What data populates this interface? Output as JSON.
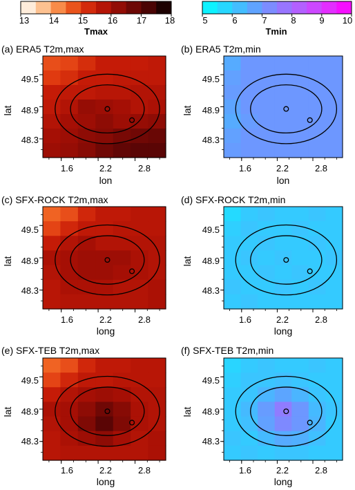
{
  "colorbars": [
    {
      "label": "Tmax",
      "ticks": [
        "13",
        "14",
        "15",
        "16",
        "17",
        "18"
      ],
      "range": [
        13,
        18
      ],
      "colors": [
        "#ffffff",
        "#fdd9b5",
        "#fca96a",
        "#f46d28",
        "#e03a10",
        "#c51b07",
        "#a50f05",
        "#7f0a05",
        "#5a0505",
        "#3a0202",
        "#000000"
      ]
    },
    {
      "label": "Tmin",
      "ticks": [
        "5",
        "6",
        "7",
        "8",
        "9",
        "10"
      ],
      "range": [
        5,
        10
      ],
      "colors": [
        "#00ffff",
        "#2bd3ff",
        "#5aa7ff",
        "#8a80ff",
        "#b85cff",
        "#e033ff",
        "#ff00ff"
      ]
    }
  ],
  "chart_data": [
    {
      "type": "heatmap",
      "title": "(a) ERA5 T2m,max",
      "xlabel": "lon",
      "ylabel": "lat",
      "xticks": [
        "1.6",
        "2.2",
        "2.8"
      ],
      "yticks": [
        "49.5",
        "48.9",
        "48.3"
      ],
      "xlim": [
        1.3,
        3.3
      ],
      "ylim": [
        47.95,
        49.85
      ],
      "field": "tmax",
      "grid": [
        [
          14.8,
          14.9,
          15.2,
          15.5,
          15.5,
          15.5,
          15.6
        ],
        [
          15.0,
          15.2,
          15.5,
          15.5,
          15.6,
          15.6,
          15.6
        ],
        [
          15.5,
          15.6,
          15.6,
          15.7,
          15.7,
          15.8,
          15.8
        ],
        [
          15.6,
          15.8,
          16.2,
          16.1,
          16.0,
          15.8,
          15.9
        ],
        [
          15.8,
          16.0,
          16.1,
          16.3,
          16.1,
          16.2,
          16.3
        ],
        [
          16.0,
          16.1,
          16.3,
          16.4,
          16.6,
          16.7,
          16.8
        ],
        [
          16.1,
          16.2,
          16.4,
          16.7,
          16.9,
          17.0,
          17.0
        ]
      ],
      "markers": [
        {
          "lon": 2.35,
          "lat": 48.86
        },
        {
          "lon": 2.75,
          "lat": 48.65
        }
      ],
      "circles": [
        {
          "lon": 2.35,
          "lat": 48.86,
          "rx_deg": 0.6,
          "ry_deg": 0.45
        },
        {
          "lon": 2.35,
          "lat": 48.86,
          "rx_deg": 0.85,
          "ry_deg": 0.65
        }
      ]
    },
    {
      "type": "heatmap",
      "title": "(b) ERA5 T2m,min",
      "xlabel": "lon",
      "ylabel": "lat",
      "xticks": [
        "1.6",
        "2.2",
        "2.8"
      ],
      "yticks": [
        "49.5",
        "48.9",
        "48.3"
      ],
      "xlim": [
        1.3,
        3.3
      ],
      "ylim": [
        47.95,
        49.85
      ],
      "field": "tmin",
      "grid": [
        [
          6.6,
          7.0,
          7.0,
          7.0,
          7.0,
          7.0,
          7.0
        ],
        [
          6.8,
          7.0,
          7.0,
          7.0,
          7.0,
          7.0,
          7.0
        ],
        [
          6.9,
          7.0,
          7.0,
          7.0,
          7.0,
          7.0,
          7.0
        ],
        [
          6.7,
          7.0,
          7.0,
          7.0,
          7.0,
          7.0,
          7.0
        ],
        [
          6.6,
          6.9,
          7.0,
          7.0,
          7.0,
          7.0,
          7.0
        ],
        [
          6.8,
          7.0,
          7.0,
          7.0,
          7.0,
          7.0,
          7.0
        ],
        [
          6.9,
          7.0,
          7.0,
          7.0,
          7.0,
          7.0,
          7.0
        ]
      ],
      "markers": [
        {
          "lon": 2.35,
          "lat": 48.86
        },
        {
          "lon": 2.75,
          "lat": 48.65
        }
      ],
      "circles": [
        {
          "lon": 2.35,
          "lat": 48.86,
          "rx_deg": 0.6,
          "ry_deg": 0.45
        },
        {
          "lon": 2.35,
          "lat": 48.86,
          "rx_deg": 0.85,
          "ry_deg": 0.65
        }
      ]
    },
    {
      "type": "heatmap",
      "title": "(c) SFX-ROCK T2m,max",
      "xlabel": "long",
      "ylabel": "lat",
      "xticks": [
        "1.6",
        "2.2",
        "2.8"
      ],
      "yticks": [
        "49.5",
        "48.9",
        "48.3"
      ],
      "xlim": [
        1.3,
        3.3
      ],
      "ylim": [
        47.95,
        49.85
      ],
      "field": "tmax",
      "grid": [
        [
          14.6,
          14.8,
          15.3,
          15.6,
          15.6,
          15.7,
          15.7
        ],
        [
          14.9,
          15.3,
          15.6,
          15.6,
          15.7,
          15.7,
          15.7
        ],
        [
          15.5,
          15.8,
          16.0,
          15.8,
          15.8,
          15.8,
          15.8
        ],
        [
          15.9,
          16.0,
          16.1,
          16.1,
          16.1,
          15.9,
          15.8
        ],
        [
          15.8,
          16.0,
          16.1,
          16.1,
          16.0,
          15.9,
          15.8
        ],
        [
          15.7,
          15.9,
          15.9,
          15.9,
          15.8,
          15.8,
          15.9
        ],
        [
          15.7,
          15.8,
          15.8,
          15.8,
          15.8,
          15.8,
          15.9
        ]
      ],
      "markers": [
        {
          "lon": 2.35,
          "lat": 48.86
        },
        {
          "lon": 2.75,
          "lat": 48.65
        }
      ],
      "circles": [
        {
          "lon": 2.35,
          "lat": 48.86,
          "rx_deg": 0.6,
          "ry_deg": 0.45
        },
        {
          "lon": 2.35,
          "lat": 48.86,
          "rx_deg": 0.85,
          "ry_deg": 0.65
        }
      ]
    },
    {
      "type": "heatmap",
      "title": "(d) SFX-ROCK T2m,min",
      "xlabel": "long",
      "ylabel": "lat",
      "xticks": [
        "1.6",
        "2.2",
        "2.8"
      ],
      "yticks": [
        "49.5",
        "48.9",
        "48.3"
      ],
      "xlim": [
        1.3,
        3.3
      ],
      "ylim": [
        47.95,
        49.85
      ],
      "field": "tmin",
      "grid": [
        [
          5.7,
          6.0,
          6.1,
          6.0,
          6.0,
          6.1,
          6.0
        ],
        [
          5.9,
          6.1,
          6.0,
          6.0,
          6.1,
          6.0,
          6.0
        ],
        [
          6.0,
          6.0,
          6.1,
          6.0,
          6.0,
          6.1,
          6.0
        ],
        [
          6.0,
          6.1,
          6.0,
          6.1,
          6.0,
          6.0,
          6.1
        ],
        [
          6.0,
          6.0,
          6.1,
          6.0,
          6.1,
          6.0,
          6.0
        ],
        [
          6.1,
          6.0,
          6.0,
          6.1,
          6.0,
          6.1,
          6.0
        ],
        [
          6.0,
          6.1,
          6.0,
          6.0,
          6.0,
          6.0,
          6.0
        ]
      ],
      "markers": [
        {
          "lon": 2.35,
          "lat": 48.86
        },
        {
          "lon": 2.75,
          "lat": 48.65
        }
      ],
      "circles": [
        {
          "lon": 2.35,
          "lat": 48.86,
          "rx_deg": 0.6,
          "ry_deg": 0.45
        },
        {
          "lon": 2.35,
          "lat": 48.86,
          "rx_deg": 0.85,
          "ry_deg": 0.65
        }
      ]
    },
    {
      "type": "heatmap",
      "title": "(e) SFX-TEB T2m,max",
      "xlabel": "long",
      "ylabel": "lat",
      "xticks": [
        "1.6",
        "2.2",
        "2.8"
      ],
      "yticks": [
        "49.5",
        "48.9",
        "48.3"
      ],
      "xlim": [
        1.3,
        3.3
      ],
      "ylim": [
        47.95,
        49.85
      ],
      "field": "tmax",
      "grid": [
        [
          14.6,
          14.8,
          15.3,
          15.6,
          15.6,
          15.7,
          15.7
        ],
        [
          14.9,
          15.3,
          15.6,
          15.6,
          15.7,
          15.7,
          15.7
        ],
        [
          15.5,
          15.8,
          16.0,
          16.1,
          16.0,
          15.8,
          15.8
        ],
        [
          15.9,
          16.0,
          16.3,
          16.7,
          16.4,
          15.9,
          15.8
        ],
        [
          15.8,
          16.0,
          16.5,
          17.0,
          16.5,
          15.9,
          15.8
        ],
        [
          15.7,
          15.9,
          16.1,
          16.3,
          16.0,
          15.8,
          15.9
        ],
        [
          15.7,
          15.8,
          15.8,
          15.8,
          15.8,
          15.8,
          15.9
        ]
      ],
      "markers": [
        {
          "lon": 2.35,
          "lat": 48.86
        },
        {
          "lon": 2.75,
          "lat": 48.65
        }
      ],
      "circles": [
        {
          "lon": 2.35,
          "lat": 48.86,
          "rx_deg": 0.6,
          "ry_deg": 0.45
        },
        {
          "lon": 2.35,
          "lat": 48.86,
          "rx_deg": 0.85,
          "ry_deg": 0.65
        }
      ]
    },
    {
      "type": "heatmap",
      "title": "(f) SFX-TEB T2m,min",
      "xlabel": "long",
      "ylabel": "lat",
      "xticks": [
        "1.6",
        "2.2",
        "2.8"
      ],
      "yticks": [
        "49.5",
        "48.9",
        "48.3"
      ],
      "xlim": [
        1.3,
        3.3
      ],
      "ylim": [
        47.95,
        49.85
      ],
      "field": "tmin",
      "grid": [
        [
          5.8,
          6.0,
          6.1,
          6.0,
          6.0,
          6.1,
          6.0
        ],
        [
          5.9,
          6.1,
          6.1,
          6.2,
          6.1,
          6.0,
          6.0
        ],
        [
          6.0,
          6.1,
          6.4,
          6.7,
          6.4,
          6.1,
          6.0
        ],
        [
          6.0,
          6.3,
          6.9,
          7.6,
          7.0,
          6.3,
          6.1
        ],
        [
          6.0,
          6.2,
          6.8,
          7.3,
          7.0,
          6.4,
          6.0
        ],
        [
          6.1,
          6.0,
          6.3,
          6.6,
          6.5,
          6.2,
          6.0
        ],
        [
          6.0,
          6.1,
          6.0,
          6.1,
          6.1,
          6.0,
          6.0
        ]
      ],
      "markers": [
        {
          "lon": 2.35,
          "lat": 48.86
        },
        {
          "lon": 2.75,
          "lat": 48.65
        }
      ],
      "circles": [
        {
          "lon": 2.35,
          "lat": 48.86,
          "rx_deg": 0.6,
          "ry_deg": 0.45
        },
        {
          "lon": 2.35,
          "lat": 48.86,
          "rx_deg": 0.85,
          "ry_deg": 0.65
        }
      ]
    }
  ]
}
